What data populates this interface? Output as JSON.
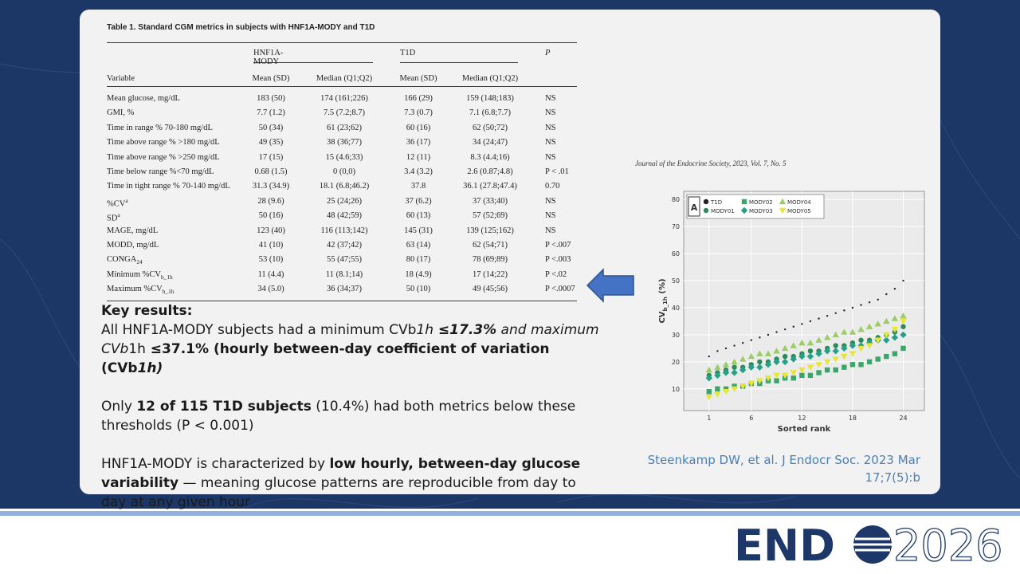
{
  "table": {
    "title": "Table 1. Standard CGM metrics in subjects with HNF1A-MODY and T1D",
    "groups": [
      "HNF1A-MODY",
      "T1D",
      "P"
    ],
    "header": [
      "Variable",
      "Mean (SD)",
      "Median (Q1;Q2)",
      "Mean (SD)",
      "Median (Q1;Q2)"
    ],
    "rows": [
      [
        "Mean glucose, mg/dL",
        "183 (50)",
        "174 (161;226)",
        "166 (29)",
        "159 (148;183)",
        "NS"
      ],
      [
        "GMI, %",
        "7.7 (1.2)",
        "7.5 (7.2;8.7)",
        "7.3 (0.7)",
        "7.1 (6.8;7.7)",
        "NS"
      ],
      [
        "Time in range % 70-180 mg/dL",
        "50 (34)",
        "61 (23;62)",
        "60 (16)",
        "62 (50;72)",
        "NS"
      ],
      [
        "Time above range % >180 mg/dL",
        "49 (35)",
        "38 (36;77)",
        "36 (17)",
        "34 (24;47)",
        "NS"
      ],
      [
        "Time above range % >250 mg/dL",
        "17 (15)",
        "15 (4.6;33)",
        "12 (11)",
        "8.3 (4.4;16)",
        "NS"
      ],
      [
        "Time below range %<70 mg/dL",
        "0.68 (1.5)",
        "0 (0,0)",
        "3.4 (3.2)",
        "2.6 (0.87;4.8)",
        "P < .01"
      ],
      [
        "Time in tight range % 70-140 mg/dL",
        "31.3 (34.9)",
        "18.1 (6.8;46.2)",
        "37.8",
        "36.1 (27.8;47.4)",
        "0.70"
      ],
      [
        {
          "text": "%CV",
          "sup": "a"
        },
        "28 (9.6)",
        "25 (24;26)",
        "37 (6.2)",
        "37 (33;40)",
        "NS"
      ],
      [
        {
          "text": "SD",
          "sup": "a"
        },
        "50 (16)",
        "48 (42;59)",
        "60 (13)",
        "57 (52;69)",
        "NS"
      ],
      [
        "MAGE, mg/dL",
        "123 (40)",
        "116 (113;142)",
        "145 (31)",
        "139 (125;162)",
        "NS"
      ],
      [
        "MODD, mg/dL",
        "41 (10)",
        "42 (37;42)",
        "63 (14)",
        "62 (54;71)",
        "P <.007"
      ],
      [
        {
          "text": "CONGA",
          "sub": "24"
        },
        "53 (10)",
        "55 (47;55)",
        "80 (17)",
        "78 (69;89)",
        "P <.003"
      ],
      [
        {
          "text": "Minimum %CV",
          "sub": "b_1h"
        },
        "11 (4.4)",
        "11 (8.1;14)",
        "18 (4.9)",
        "17 (14;22)",
        "P <.02"
      ],
      [
        {
          "text": "Maximum %CV",
          "sub": "b_1h"
        },
        "34 (5.0)",
        "36 (34;37)",
        "50 (10)",
        "49 (45;56)",
        "P <.0007"
      ]
    ]
  },
  "key_results": {
    "paragraphs": [
      {
        "runs": [
          {
            "text": "Key results:",
            "bold": true
          }
        ]
      },
      {
        "runs": [
          {
            "text": "All HNF1A-MODY subjects had a minimum CVb"
          },
          {
            "text": "1h",
            "italic": true
          },
          {
            "text": " ≤17.3%",
            "bold": true,
            "italic": true
          },
          {
            "text": " and maximum CVb",
            "italic": true
          },
          {
            "text": "1h"
          },
          {
            "text": " ≤37.1% (hourly between-day coefficient of variation (CVb",
            "bold": true
          },
          {
            "text": "1h)",
            "bold": true,
            "italic": true
          }
        ]
      },
      {
        "runs": [
          {
            "text": "Only "
          },
          {
            "text": "12 of 115 T1D subjects",
            "bold": true
          },
          {
            "text": " (10.4%) had both metrics below these thresholds (P < 0.001)"
          }
        ]
      },
      {
        "runs": [
          {
            "text": "HNF1A-MODY is characterized by "
          },
          {
            "text": "low hourly, between-day glucose variability",
            "bold": true
          },
          {
            "text": " — meaning glucose patterns are reproducible from day to day at any given hour"
          }
        ]
      }
    ]
  },
  "journal": "Journal of the Endocrine Society, 2023, Vol. 7, No. 5",
  "chart_data": {
    "type": "scatter",
    "panel": "A",
    "ylabel": {
      "text": "CV",
      "sub": "b_1h",
      "suffix": " (%)"
    },
    "xlabel": "Sorted rank",
    "x": [
      1,
      2,
      3,
      4,
      5,
      6,
      7,
      8,
      9,
      10,
      11,
      12,
      13,
      14,
      15,
      16,
      17,
      18,
      19,
      20,
      21,
      22,
      23,
      24
    ],
    "xlim": [
      -2,
      26.5
    ],
    "ylim": [
      2,
      83
    ],
    "xticks": [
      1,
      6,
      12,
      18,
      24
    ],
    "yticks": [
      10,
      20,
      30,
      40,
      50,
      60,
      70,
      80
    ],
    "grid": true,
    "series": [
      {
        "name": "T1D",
        "color": "#222222",
        "marker": "dot",
        "values": [
          22,
          24,
          25,
          26,
          27,
          28,
          29,
          30,
          31,
          32,
          33,
          34,
          35,
          36,
          37,
          38,
          39,
          40,
          41,
          42,
          43,
          45,
          47,
          50
        ]
      },
      {
        "name": "MODY01",
        "color": "#2e8b57",
        "marker": "circle",
        "values": [
          15,
          16,
          17,
          18,
          18,
          19,
          20,
          20,
          21,
          22,
          22,
          23,
          24,
          24,
          25,
          26,
          26,
          27,
          28,
          28,
          29,
          30,
          31,
          33
        ]
      },
      {
        "name": "MODY02",
        "color": "#3aa66a",
        "marker": "square",
        "values": [
          9,
          10,
          10,
          11,
          11,
          12,
          12,
          13,
          13,
          14,
          14,
          15,
          15,
          16,
          17,
          17,
          18,
          19,
          19,
          20,
          21,
          22,
          23,
          25
        ]
      },
      {
        "name": "MODY03",
        "color": "#27a08a",
        "marker": "diamond",
        "values": [
          14,
          15,
          16,
          16,
          17,
          18,
          18,
          19,
          20,
          20,
          21,
          22,
          22,
          23,
          24,
          24,
          25,
          26,
          26,
          27,
          28,
          28,
          29,
          30
        ]
      },
      {
        "name": "MODY04",
        "color": "#9ccc65",
        "marker": "triangle",
        "values": [
          17,
          18,
          19,
          20,
          21,
          22,
          23,
          23,
          24,
          25,
          26,
          27,
          27,
          28,
          29,
          30,
          31,
          31,
          32,
          33,
          34,
          35,
          36,
          37
        ]
      },
      {
        "name": "MODY05",
        "color": "#e6e633",
        "marker": "triangle-down",
        "values": [
          7,
          8,
          9,
          10,
          11,
          12,
          13,
          14,
          15,
          15,
          16,
          17,
          18,
          19,
          20,
          21,
          22,
          23,
          25,
          26,
          28,
          30,
          32,
          35
        ]
      }
    ]
  },
  "reference": "Steenkamp DW, et al. J Endocr Soc. 2023 Mar 17;7(5):b",
  "logo": {
    "brand": "END",
    "year": "2026"
  }
}
